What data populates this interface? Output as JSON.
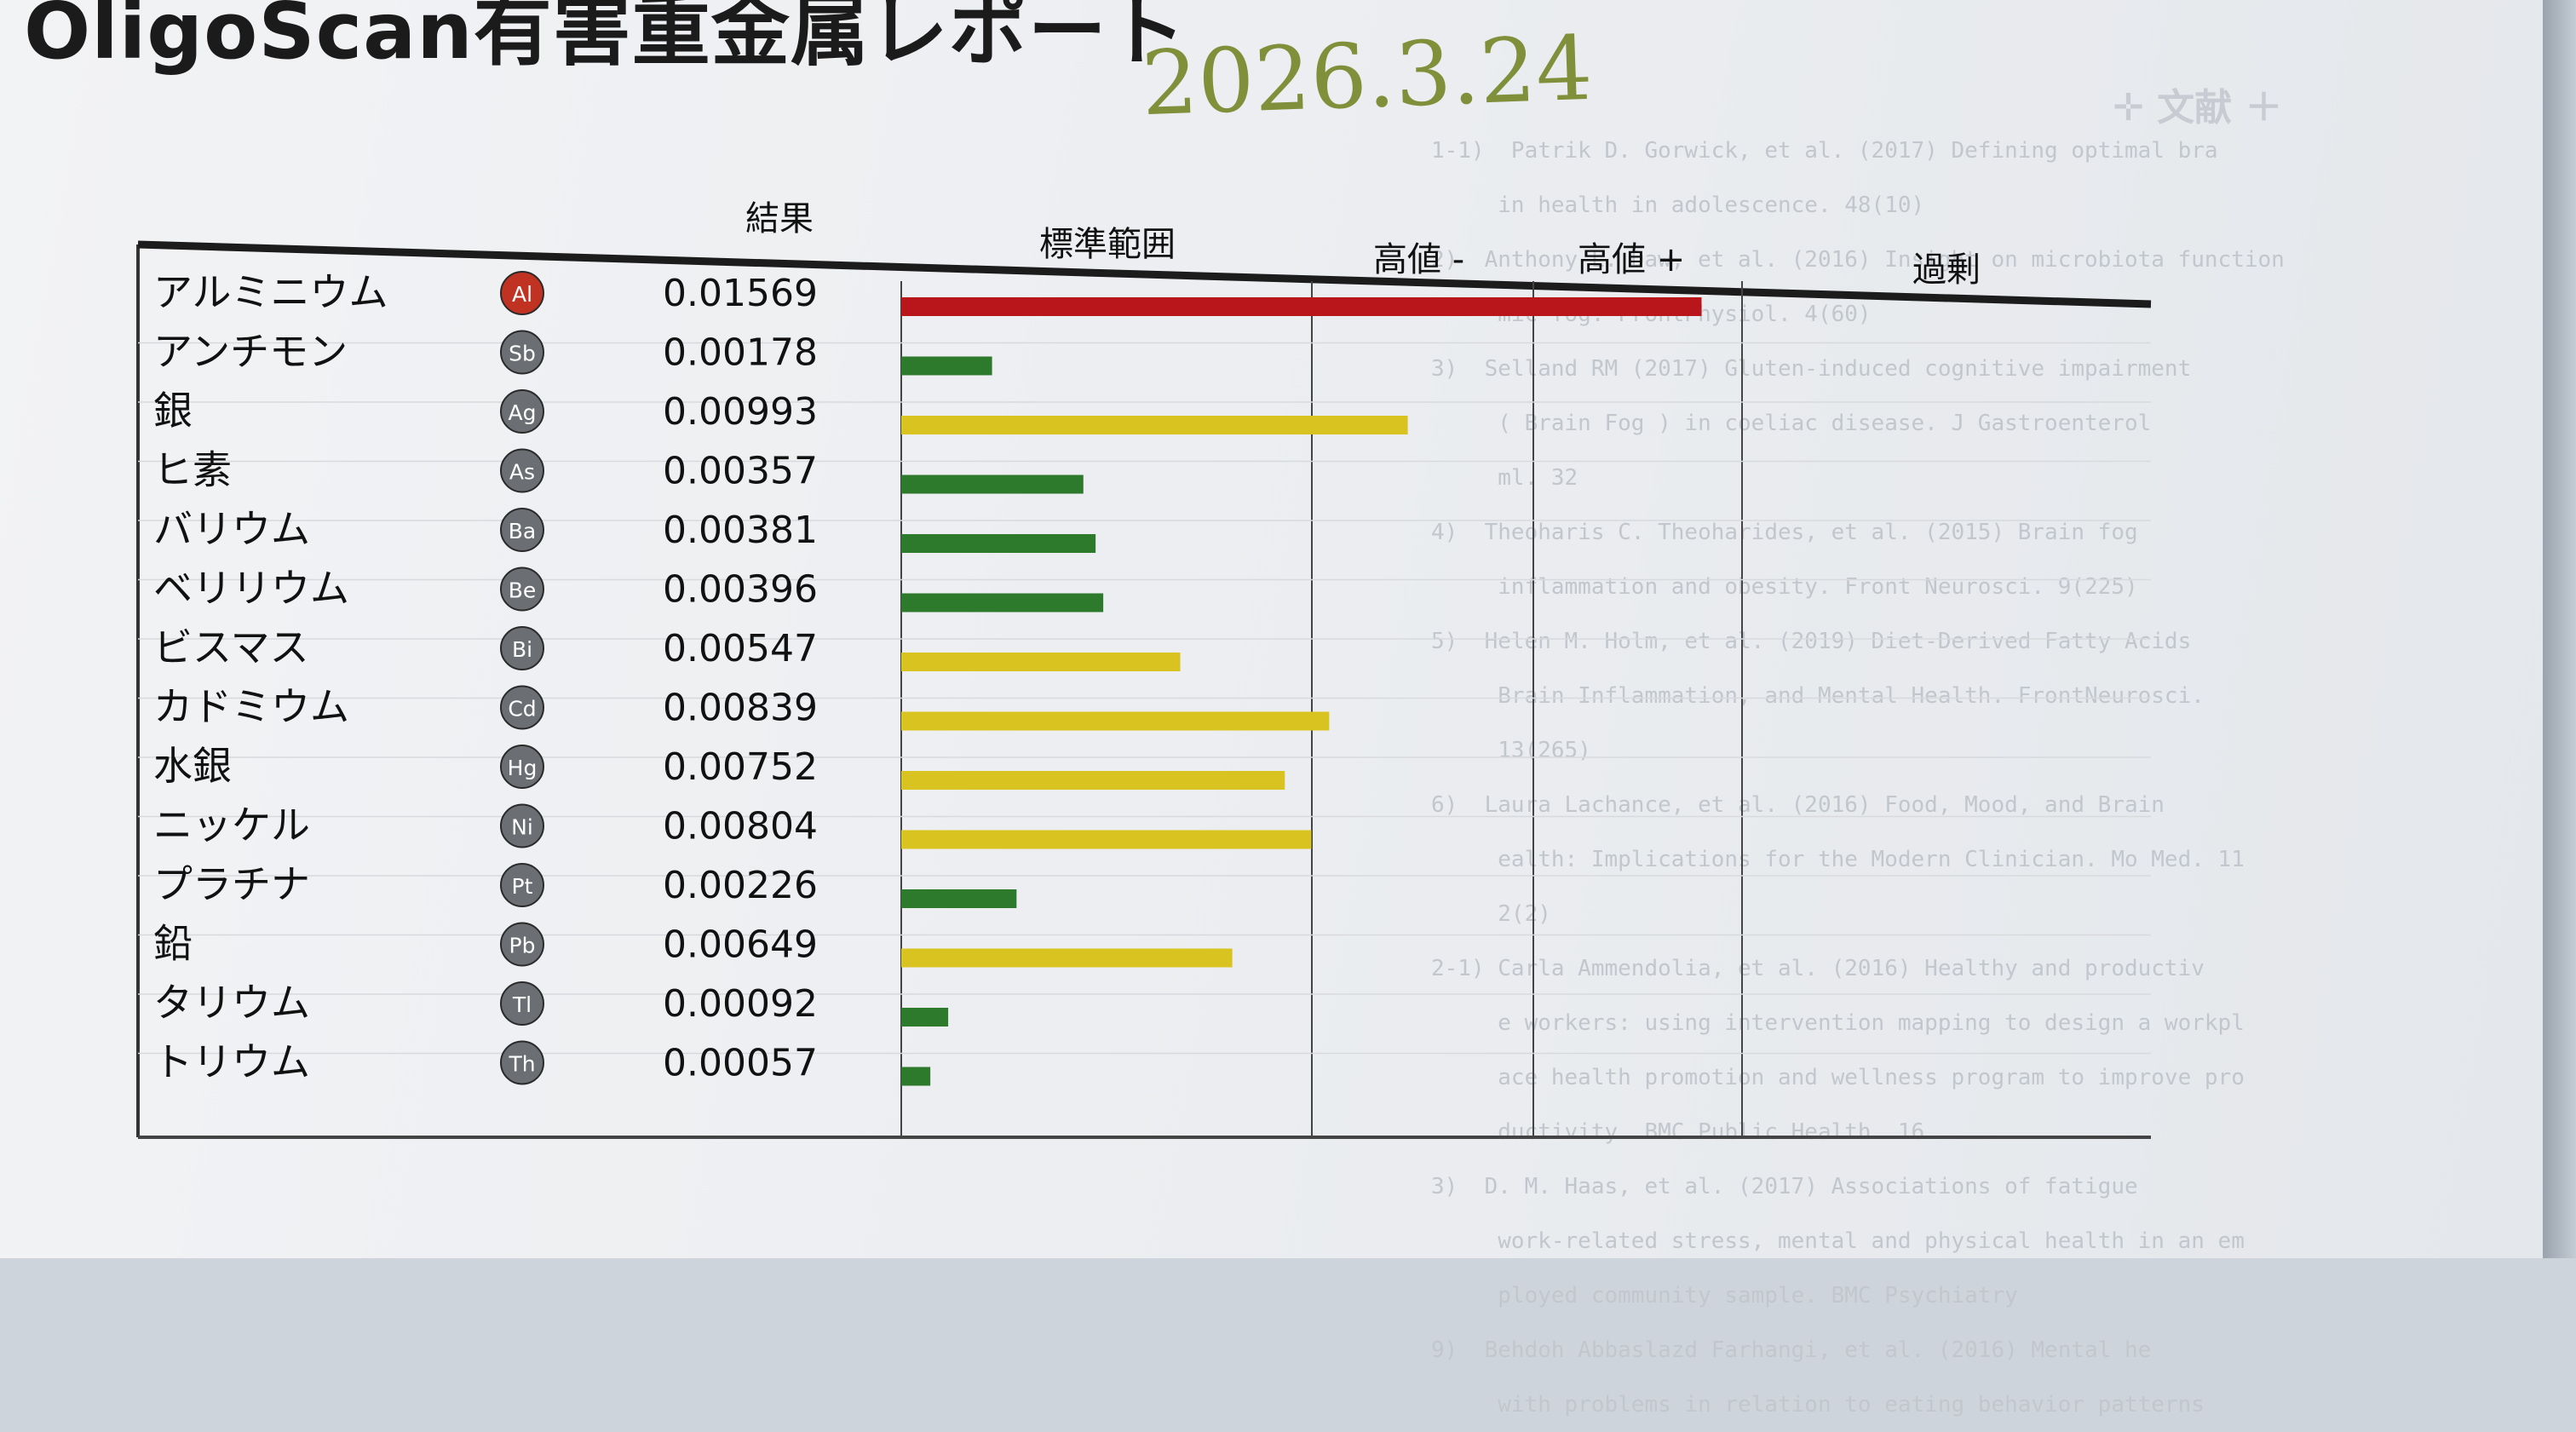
{
  "report": {
    "title": "OligoScan有害重金属レポート",
    "handwritten_date": "2026.3.24"
  },
  "chart_data": {
    "type": "bar",
    "orientation": "horizontal",
    "headers": {
      "result": "結果",
      "standard": "標準範囲",
      "high_minus": "高値 -",
      "high_plus": "高値 +",
      "excess": "過剰"
    },
    "xlim": [
      0,
      0.0245
    ],
    "grid": true,
    "colors": {
      "red": "#b8161b",
      "yellow": "#d9c320",
      "green": "#2e7a2c"
    },
    "rows": [
      {
        "name": "アルミニウム",
        "symbol": "Al",
        "value": 0.01569,
        "display": "0.01569",
        "color": "red"
      },
      {
        "name": "アンチモン",
        "symbol": "Sb",
        "value": 0.00178,
        "display": "0.00178",
        "color": "green"
      },
      {
        "name": "銀",
        "symbol": "Ag",
        "value": 0.00993,
        "display": "0.00993",
        "color": "yellow"
      },
      {
        "name": "ヒ素",
        "symbol": "As",
        "value": 0.00357,
        "display": "0.00357",
        "color": "green"
      },
      {
        "name": "バリウム",
        "symbol": "Ba",
        "value": 0.00381,
        "display": "0.00381",
        "color": "green"
      },
      {
        "name": "ベリリウム",
        "symbol": "Be",
        "value": 0.00396,
        "display": "0.00396",
        "color": "green"
      },
      {
        "name": "ビスマス",
        "symbol": "Bi",
        "value": 0.00547,
        "display": "0.00547",
        "color": "yellow"
      },
      {
        "name": "カドミウム",
        "symbol": "Cd",
        "value": 0.00839,
        "display": "0.00839",
        "color": "yellow"
      },
      {
        "name": "水銀",
        "symbol": "Hg",
        "value": 0.00752,
        "display": "0.00752",
        "color": "yellow"
      },
      {
        "name": "ニッケル",
        "symbol": "Ni",
        "value": 0.00804,
        "display": "0.00804",
        "color": "yellow"
      },
      {
        "name": "プラチナ",
        "symbol": "Pt",
        "value": 0.00226,
        "display": "0.00226",
        "color": "green"
      },
      {
        "name": "鉛",
        "symbol": "Pb",
        "value": 0.00649,
        "display": "0.00649",
        "color": "yellow"
      },
      {
        "name": "タリウム",
        "symbol": "Tl",
        "value": 0.00092,
        "display": "0.00092",
        "color": "green"
      },
      {
        "name": "トリウム",
        "symbol": "Th",
        "value": 0.00057,
        "display": "0.00057",
        "color": "green"
      }
    ]
  }
}
